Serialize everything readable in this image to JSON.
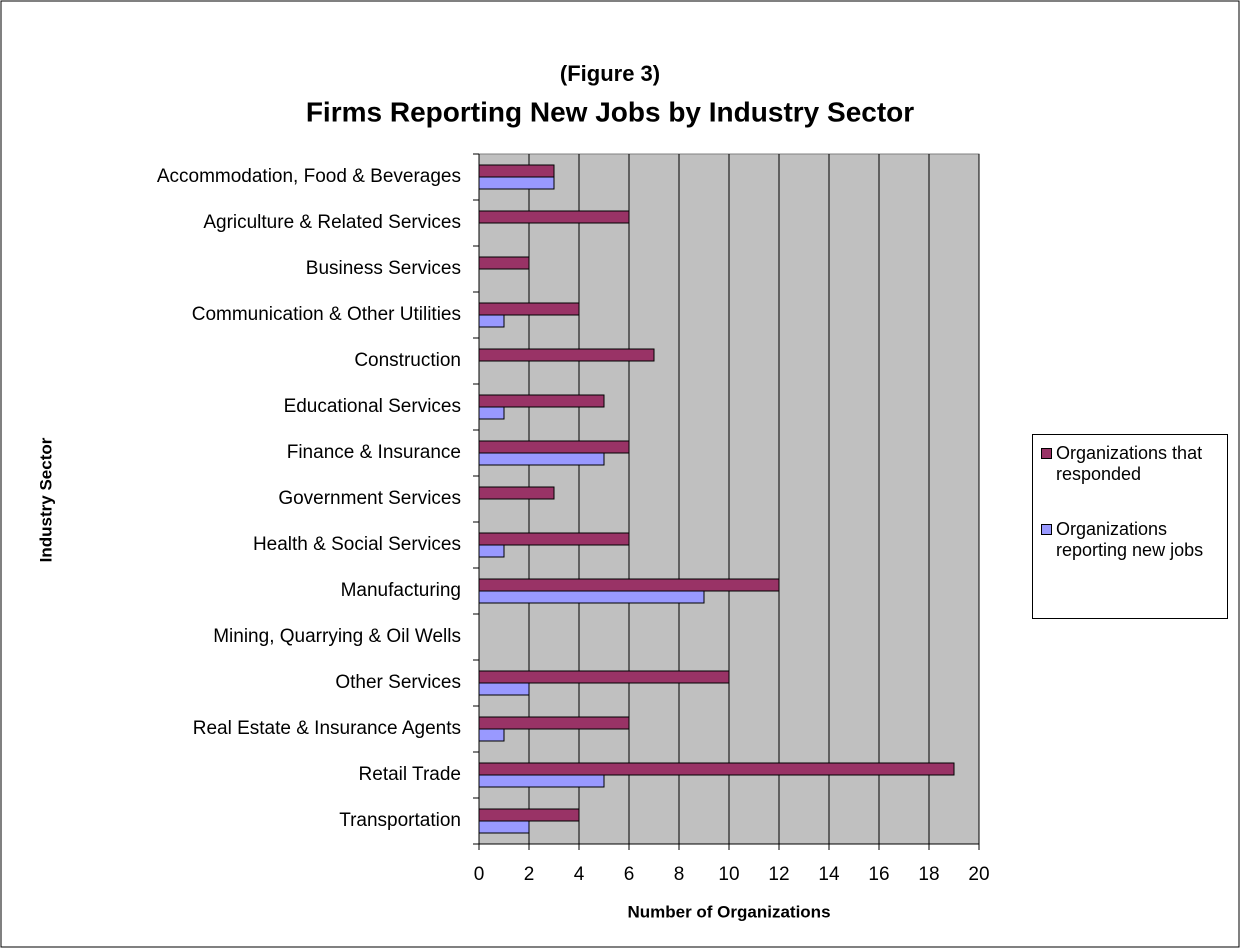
{
  "chart_data": {
    "type": "bar",
    "orientation": "horizontal",
    "title": "(Figure 3)",
    "subtitle": "Firms Reporting New Jobs by Industry Sector",
    "x_label": "Number of Organizations",
    "y_label": "Industry Sector",
    "categories": [
      "Accommodation, Food & Beverages",
      "Agriculture & Related Services",
      "Business Services",
      "Communication & Other Utilities",
      "Construction",
      "Educational Services",
      "Finance & Insurance",
      "Government Services",
      "Health & Social Services",
      "Manufacturing",
      "Mining, Quarrying & Oil Wells",
      "Other Services",
      "Real Estate & Insurance Agents",
      "Retail Trade",
      "Transportation"
    ],
    "series": [
      {
        "name": "Organizations that responded",
        "color": "#993366",
        "values": [
          3,
          6,
          2,
          4,
          7,
          5,
          6,
          3,
          6,
          12,
          0,
          10,
          6,
          19,
          4
        ]
      },
      {
        "name": "Organizations reporting new jobs",
        "color": "#9999ff",
        "values": [
          3,
          0,
          0,
          1,
          0,
          1,
          5,
          0,
          1,
          9,
          0,
          2,
          1,
          5,
          2
        ]
      }
    ],
    "xlim": [
      0,
      20
    ],
    "xticks": [
      0,
      2,
      4,
      6,
      8,
      10,
      12,
      14,
      16,
      18,
      20
    ],
    "grid": true,
    "plot_background": "#c0c0c0",
    "legend": "right"
  }
}
